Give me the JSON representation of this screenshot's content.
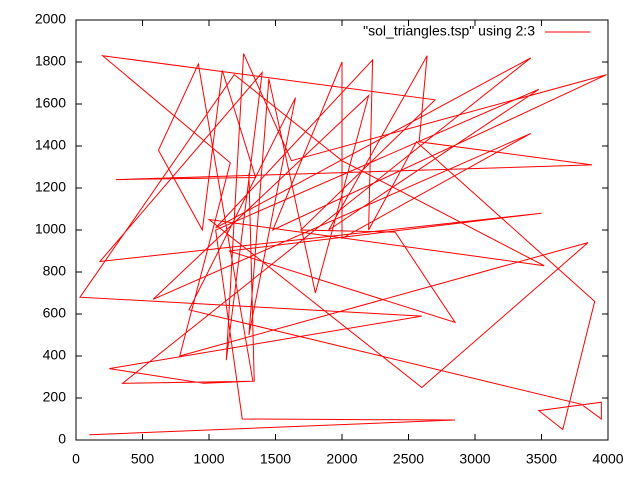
{
  "chart_data": {
    "type": "line",
    "legend_position": "top-right",
    "series": [
      {
        "name": "\"sol_triangles.tsp\" using 2:3",
        "color": "#ff0000",
        "x": [
          100,
          2850,
          1250,
          1050,
          3480,
          1900,
          2640,
          2580,
          3880,
          300,
          1350,
          1100,
          950,
          620,
          920,
          1330,
          350,
          3420,
          1050,
          2230,
          2200,
          2560,
          3900,
          3660,
          3480,
          3950,
          3950,
          3800,
          850,
          1650,
          1300,
          1450,
          1800,
          2200,
          580,
          3420,
          2000,
          2000,
          1480,
          3990,
          1620,
          1260,
          1130,
          1400,
          180,
          3500,
          1150,
          2850,
          2400,
          1690,
          2700,
          200,
          1160,
          780,
          3850,
          2600,
          1000,
          3520,
          2000,
          1190,
          30,
          2600,
          250,
          960,
          1340,
          1300
        ],
        "y": [
          25,
          95,
          100,
          1000,
          1670,
          1000,
          1830,
          1420,
          1310,
          1240,
          1250,
          1760,
          1000,
          1380,
          1790,
          280,
          270,
          1820,
          1010,
          1810,
          1000,
          1420,
          660,
          50,
          140,
          180,
          100,
          170,
          620,
          1630,
          500,
          1720,
          700,
          1640,
          670,
          1460,
          960,
          1800,
          1000,
          1740,
          1330,
          1840,
          380,
          1750,
          850,
          1080,
          900,
          560,
          990,
          1000,
          1620,
          1830,
          1320,
          400,
          940,
          250,
          1050,
          830,
          1330,
          1740,
          680,
          590,
          340,
          270,
          280,
          1270
        ]
      }
    ],
    "xlim": [
      0,
      4000
    ],
    "xticks": [
      0,
      500,
      1000,
      1500,
      2000,
      2500,
      3000,
      3500,
      4000
    ],
    "ylim": [
      0,
      2000
    ],
    "yticks": [
      0,
      200,
      400,
      600,
      800,
      1000,
      1200,
      1400,
      1600,
      1800,
      2000
    ],
    "grid": false
  }
}
